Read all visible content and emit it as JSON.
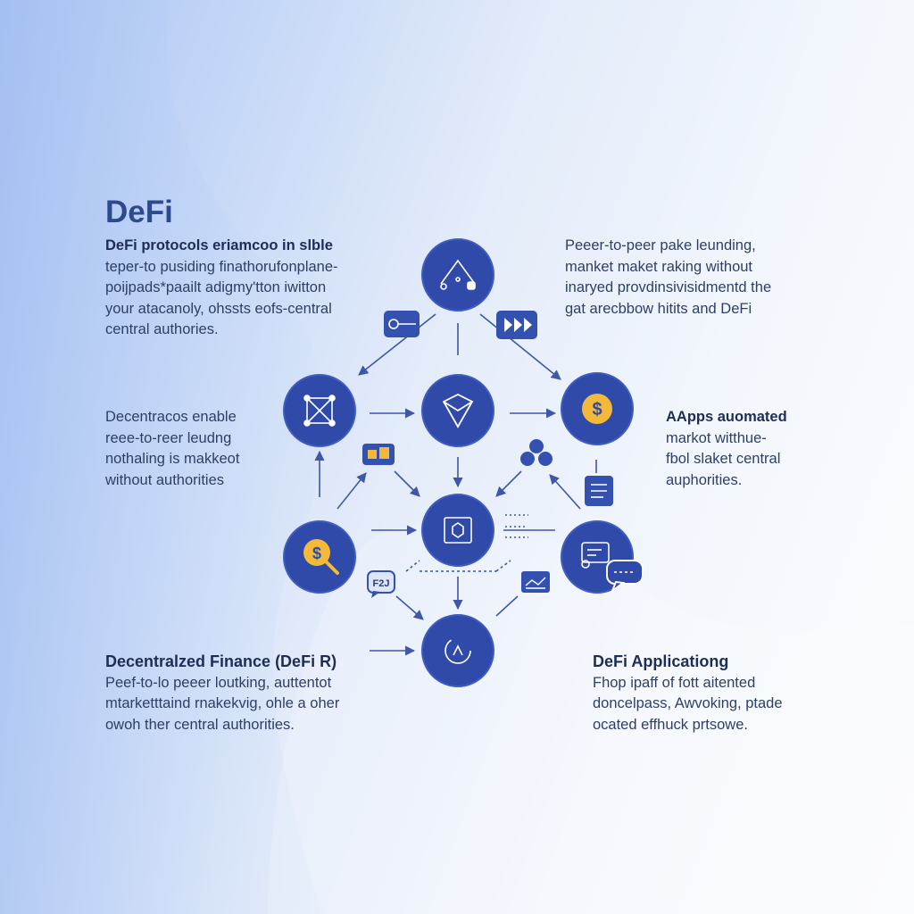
{
  "title": "DeFi",
  "blocks": {
    "top_left": {
      "lines": [
        "DeFi protocols eriamcoo in slble",
        "teper-to pusiding finathorufonplane-",
        "poijpads*paailt adigmy'tton iwitton",
        "your atacanoly, ohssts eofs-central",
        "central authories."
      ]
    },
    "top_right": {
      "lines": [
        "Peeer-to-peer pake leunding,",
        "manket maket raking without",
        "inaryed provdinsivisidmentd the",
        "gat arecbbow hitits and DeFi"
      ]
    },
    "mid_left": {
      "lines": [
        "Decentracos enable",
        "reee-to-reer leudng",
        "nothaling is makkeot",
        "without authorities"
      ]
    },
    "mid_right": {
      "lines": [
        "AApps auomated",
        "markot witthue-",
        "fbol slaket central",
        "auphorities."
      ]
    },
    "bottom_left": {
      "heading": "Decentralzed Finance (DeFi R)",
      "lines": [
        "Peef-to-lo peeer loutking, auttentot",
        "mtarketttaind rnakekvig, ohle a oher",
        "owoh ther central authorities."
      ]
    },
    "bottom_right": {
      "heading": "DeFi Applicationg",
      "lines": [
        "Fhop ipaff of fott aitented",
        "doncelpass, Awvoking, ptade",
        "ocated effhuck prtsowe."
      ]
    }
  },
  "diagram": {
    "nodes": [
      {
        "id": "top",
        "icon": "network-home-icon"
      },
      {
        "id": "left",
        "icon": "blockchain-cube-icon"
      },
      {
        "id": "center",
        "icon": "ethereum-diamond-icon"
      },
      {
        "id": "right",
        "icon": "dollar-coin-icon",
        "glyph": "$"
      },
      {
        "id": "core",
        "icon": "smart-contract-icon"
      },
      {
        "id": "bottom-left",
        "icon": "coin-search-icon",
        "glyph": "$"
      },
      {
        "id": "bottom-right",
        "icon": "chat-screen-icon"
      },
      {
        "id": "bottom",
        "icon": "refresh-dial-icon"
      }
    ],
    "badges": [
      {
        "id": "key",
        "icon": "key-icon"
      },
      {
        "id": "forward",
        "icon": "fast-forward-icon"
      },
      {
        "id": "wallet",
        "icon": "wallet-icon"
      },
      {
        "id": "people",
        "icon": "people-group-icon"
      },
      {
        "id": "document",
        "icon": "document-icon"
      },
      {
        "id": "chat",
        "icon": "chat-bubble-icon",
        "text": "F2J"
      },
      {
        "id": "chart",
        "icon": "chart-card-icon"
      }
    ],
    "colors": {
      "node_fill": "#2f4aa8",
      "node_stroke": "#3f5cc0",
      "badge_fill": "#3551b0",
      "coin": "#f2b93b",
      "arrow": "#3f57a6"
    }
  }
}
